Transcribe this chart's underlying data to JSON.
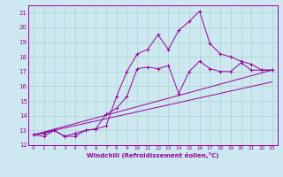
{
  "xlabel": "Windchill (Refroidissement éolien,°C)",
  "background_color": "#cde8f0",
  "line_color": "#990099",
  "grid_color": "#aad4cc",
  "xlim": [
    -0.5,
    23.5
  ],
  "ylim": [
    12,
    21.5
  ],
  "yticks": [
    12,
    13,
    14,
    15,
    16,
    17,
    18,
    19,
    20,
    21
  ],
  "xticks": [
    0,
    1,
    2,
    3,
    4,
    5,
    6,
    7,
    8,
    9,
    10,
    11,
    12,
    13,
    14,
    15,
    16,
    17,
    18,
    19,
    20,
    21,
    22,
    23
  ],
  "curve1_x": [
    0,
    1,
    2,
    3,
    4,
    5,
    6,
    7,
    8,
    9,
    10,
    11,
    12,
    13,
    14,
    15,
    16,
    17,
    18,
    19,
    20,
    21,
    22,
    23
  ],
  "curve1_y": [
    12.7,
    12.6,
    13.0,
    12.6,
    12.6,
    13.0,
    13.1,
    13.3,
    15.3,
    17.0,
    18.2,
    18.5,
    19.5,
    18.5,
    19.8,
    20.4,
    21.1,
    18.9,
    18.2,
    18.0,
    17.7,
    17.5,
    17.1,
    17.1
  ],
  "curve2_x": [
    0,
    1,
    2,
    3,
    4,
    5,
    6,
    7,
    8,
    9,
    10,
    11,
    12,
    13,
    14,
    15,
    16,
    17,
    18,
    19,
    20,
    21,
    22,
    23
  ],
  "curve2_y": [
    12.7,
    12.8,
    13.0,
    12.6,
    12.8,
    13.0,
    13.1,
    14.1,
    14.5,
    15.3,
    17.2,
    17.3,
    17.2,
    17.4,
    15.5,
    17.0,
    17.7,
    17.2,
    17.0,
    17.0,
    17.6,
    17.1,
    17.1,
    17.1
  ],
  "line1_x": [
    0,
    23
  ],
  "line1_y": [
    12.7,
    17.1
  ],
  "line2_x": [
    0,
    23
  ],
  "line2_y": [
    12.7,
    16.3
  ]
}
